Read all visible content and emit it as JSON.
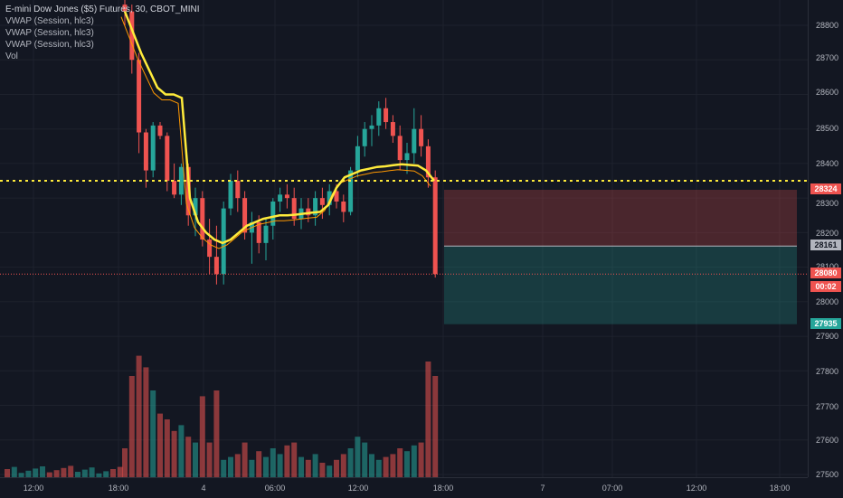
{
  "legend": {
    "title": "E-mini Dow Jones ($5) Futures, 30, CBOT_MINI",
    "indicators": [
      "VWAP (Session, hlc3)",
      "VWAP (Session, hlc3)",
      "VWAP (Session, hlc3)",
      "Vol"
    ]
  },
  "price_axis": {
    "ticks": [
      "28800",
      "28700",
      "28600",
      "28500",
      "28400",
      "28300",
      "28200",
      "28100",
      "28000",
      "27900",
      "27800",
      "27700",
      "27600",
      "27500"
    ],
    "badges": {
      "stop": {
        "value": "28324",
        "color": "#ef5350"
      },
      "entry": {
        "value": "28161",
        "color": "#b2b5be"
      },
      "last": {
        "value": "28080",
        "color": "#ef5350"
      },
      "countdown": {
        "value": "00:02",
        "color": "#ef5350"
      },
      "target": {
        "value": "27935",
        "color": "#26a69a"
      }
    }
  },
  "time_axis": {
    "ticks": [
      "12:00",
      "18:00",
      "4",
      "06:00",
      "12:00",
      "18:00",
      "7",
      "07:00",
      "12:00",
      "18:00"
    ]
  },
  "colors": {
    "up": "#26a69a",
    "down": "#ef5350",
    "vwap": "#ffeb3b",
    "vwap_thin": "#ff9800",
    "background": "#131722",
    "grid": "#1e222d"
  },
  "position": {
    "type": "short",
    "stop": 28324,
    "entry": 28161,
    "target": 27935
  },
  "horizontal_line": {
    "price": 28350,
    "style": "dotted",
    "color": "#ffeb3b"
  },
  "last_price_line": {
    "price": 28080
  }
}
